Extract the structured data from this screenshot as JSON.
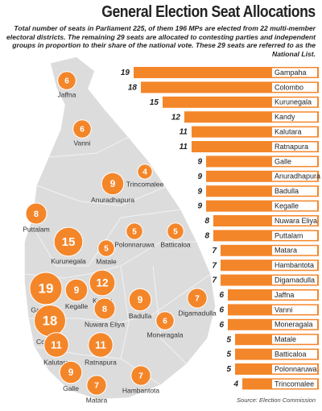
{
  "chart_data": {
    "type": "bar",
    "title": "General Election Seat Allocations",
    "subtitle": "Total number of seats in Parliament 225, of them 196 MPs are elected from 22 multi-member electoral districts. The remaining 29 seats are allocated to contesting parties and independent groups in proportion to their share of the national vote. These 29 seats are referred to as the National List.",
    "source": "Source: Election Commission",
    "categories": [
      "Gampaha",
      "Colombo",
      "Kurunegala",
      "Kandy",
      "Kalutara",
      "Ratnapura",
      "Galle",
      "Anuradhapura",
      "Badulla",
      "Kegalle",
      "Nuwara Eliya",
      "Puttalam",
      "Matara",
      "Hambantota",
      "Digamadulla",
      "Jaffna",
      "Vanni",
      "Moneragala",
      "Matale",
      "Batticaloa",
      "Polonnaruwa",
      "Trincomalee"
    ],
    "values": [
      19,
      18,
      15,
      12,
      11,
      11,
      9,
      9,
      9,
      9,
      8,
      8,
      7,
      7,
      7,
      6,
      6,
      6,
      5,
      5,
      5,
      4
    ],
    "color": "#f4862a"
  }
}
